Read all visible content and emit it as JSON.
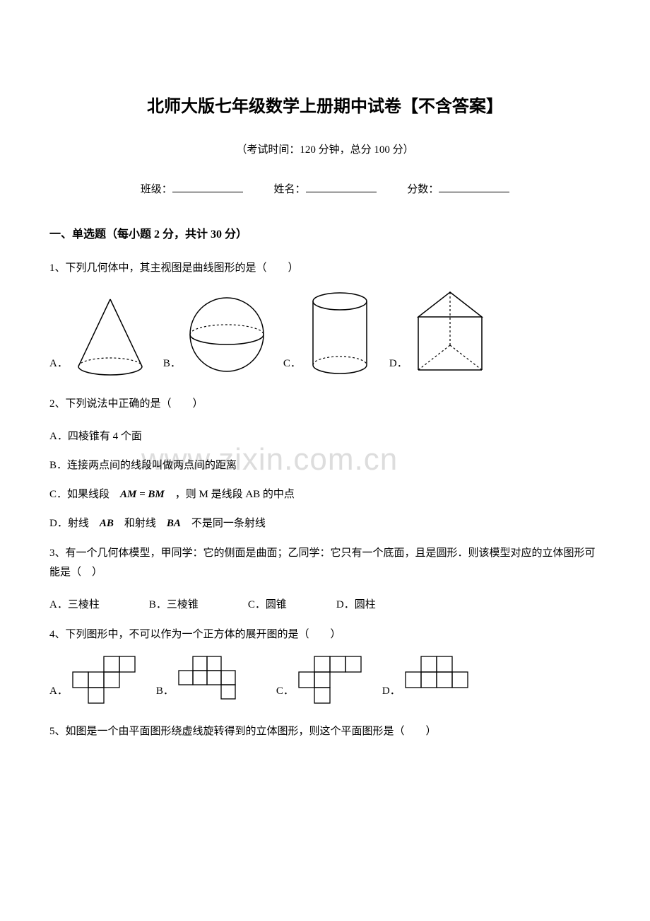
{
  "title": "北师大版七年级数学上册期中试卷【不含答案】",
  "subtitle": "（考试时间：120 分钟，总分 100 分）",
  "info": {
    "class_label": "班级：",
    "name_label": "姓名：",
    "score_label": "分数："
  },
  "section1": {
    "header": "一、单选题（每小题 2 分，共计 30 分）"
  },
  "q1": {
    "text": "1、下列几何体中，其主视图是曲线图形的是（　　）",
    "a": "A．",
    "b": "B．",
    "c": "C．",
    "d": "D．",
    "shapes": {
      "cone": {
        "stroke": "#000000",
        "dash": "3,3"
      },
      "sphere": {
        "stroke": "#000000",
        "dash": "3,3"
      },
      "cylinder": {
        "stroke": "#000000",
        "dash": "3,3"
      },
      "prism": {
        "stroke": "#000000",
        "dash": "3,3"
      }
    }
  },
  "q2": {
    "text": "2、下列说法中正确的是（　　）",
    "a": "A．四棱锥有 4 个面",
    "b": "B．连接两点间的线段叫做两点间的距离",
    "c_prefix": "C．如果线段　",
    "c_formula": "AM = BM",
    "c_suffix": "　，则 M 是线段 AB 的中点",
    "d_prefix": "D．射线　",
    "d_ab": "AB",
    "d_mid": "　和射线　",
    "d_ba": "BA",
    "d_suffix": "　不是同一条射线"
  },
  "q3": {
    "text": "3、有一个几何体模型，甲同学：它的侧面是曲面；乙同学：它只有一个底面，且是圆形．则该模型对应的立体图形可能是（　）",
    "a": "A．三棱柱",
    "b": "B．三棱锥",
    "c": "C．圆锥",
    "d": "D．圆柱"
  },
  "q4": {
    "text": "4、下列图形中，不可以作为一个正方体的展开图的是（　　）",
    "a": "A．",
    "b": "B．",
    "c": "C．",
    "d": "D．",
    "net_stroke": "#000000",
    "cell": 22
  },
  "q5": {
    "text": "5、如图是一个由平面图形绕虚线旋转得到的立体图形，则这个平面图形是（　　）"
  },
  "watermark": "www.zixin.com.cn"
}
